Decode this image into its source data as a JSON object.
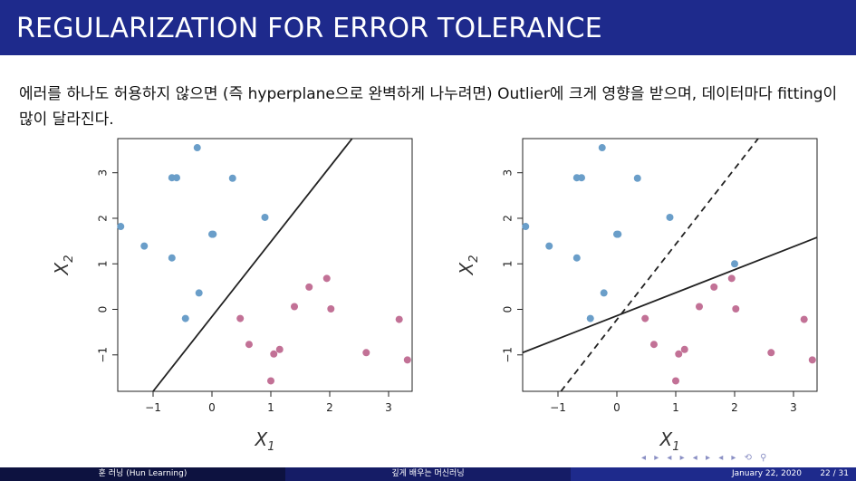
{
  "slide": {
    "title": "REGULARIZATION FOR ERROR TOLERANCE",
    "body": "에러를 하나도 허용하지 않으면 (즉 hyperplane으로 완벽하게 나누려면) Outlier에 크게 영향을 받으며, 데이터마다 fitting이 많이 달라진다."
  },
  "footer": {
    "author": "훈 러닝 (Hun Learning)",
    "course": "깊게 배우는 머신러닝",
    "date": "January 22, 2020",
    "page": "22 / 31"
  },
  "colors": {
    "blue": "#6a9ec9",
    "pink": "#c27196",
    "title_bg": "#1e2a8c"
  },
  "chart_data": [
    {
      "type": "scatter",
      "xlabel": "X1",
      "ylabel": "X2",
      "xlim": [
        -1.6,
        3.4
      ],
      "ylim": [
        -1.8,
        3.75
      ],
      "xticks": [
        "-1",
        "0",
        "1",
        "2",
        "3"
      ],
      "yticks": [
        "-1",
        "0",
        "1",
        "2",
        "3"
      ],
      "series": [
        {
          "color": "blue",
          "points": [
            [
              -1.55,
              1.82
            ],
            [
              -1.15,
              1.39
            ],
            [
              -0.68,
              2.89
            ],
            [
              -0.6,
              2.89
            ],
            [
              -0.68,
              1.13
            ],
            [
              -0.25,
              3.55
            ],
            [
              -0.45,
              -0.2
            ],
            [
              -0.22,
              0.36
            ],
            [
              0.0,
              1.65
            ],
            [
              0.02,
              1.65
            ],
            [
              0.35,
              2.88
            ],
            [
              0.9,
              2.02
            ]
          ]
        },
        {
          "color": "pink",
          "points": [
            [
              0.48,
              -0.2
            ],
            [
              0.63,
              -0.77
            ],
            [
              1.0,
              -1.57
            ],
            [
              1.05,
              -0.98
            ],
            [
              1.15,
              -0.88
            ],
            [
              1.4,
              0.06
            ],
            [
              1.65,
              0.49
            ],
            [
              1.95,
              0.68
            ],
            [
              2.02,
              0.01
            ],
            [
              2.62,
              -0.95
            ],
            [
              3.18,
              -0.22
            ],
            [
              3.32,
              -1.11
            ]
          ]
        }
      ],
      "lines": [
        {
          "style": "solid",
          "from": [
            -1.0,
            -1.8
          ],
          "to": [
            2.38,
            3.75
          ]
        }
      ]
    },
    {
      "type": "scatter",
      "xlabel": "X1",
      "ylabel": "X2",
      "xlim": [
        -1.6,
        3.4
      ],
      "ylim": [
        -1.8,
        3.75
      ],
      "xticks": [
        "-1",
        "0",
        "1",
        "2",
        "3"
      ],
      "yticks": [
        "-1",
        "0",
        "1",
        "2",
        "3"
      ],
      "series": [
        {
          "color": "blue",
          "points": [
            [
              -1.55,
              1.82
            ],
            [
              -1.15,
              1.39
            ],
            [
              -0.68,
              2.89
            ],
            [
              -0.6,
              2.89
            ],
            [
              -0.68,
              1.13
            ],
            [
              -0.25,
              3.55
            ],
            [
              -0.45,
              -0.2
            ],
            [
              -0.22,
              0.36
            ],
            [
              0.0,
              1.65
            ],
            [
              0.02,
              1.65
            ],
            [
              0.35,
              2.88
            ],
            [
              0.9,
              2.02
            ],
            [
              2.0,
              1.0
            ]
          ]
        },
        {
          "color": "pink",
          "points": [
            [
              0.48,
              -0.2
            ],
            [
              0.63,
              -0.77
            ],
            [
              1.0,
              -1.57
            ],
            [
              1.05,
              -0.98
            ],
            [
              1.15,
              -0.88
            ],
            [
              1.4,
              0.06
            ],
            [
              1.65,
              0.49
            ],
            [
              1.95,
              0.68
            ],
            [
              2.02,
              0.01
            ],
            [
              2.62,
              -0.95
            ],
            [
              3.18,
              -0.22
            ],
            [
              3.32,
              -1.11
            ]
          ]
        }
      ],
      "lines": [
        {
          "style": "dashed",
          "from": [
            -0.95,
            -1.8
          ],
          "to": [
            2.4,
            3.75
          ]
        },
        {
          "style": "solid",
          "from": [
            -1.6,
            -0.95
          ],
          "to": [
            3.4,
            1.58
          ]
        }
      ]
    }
  ]
}
